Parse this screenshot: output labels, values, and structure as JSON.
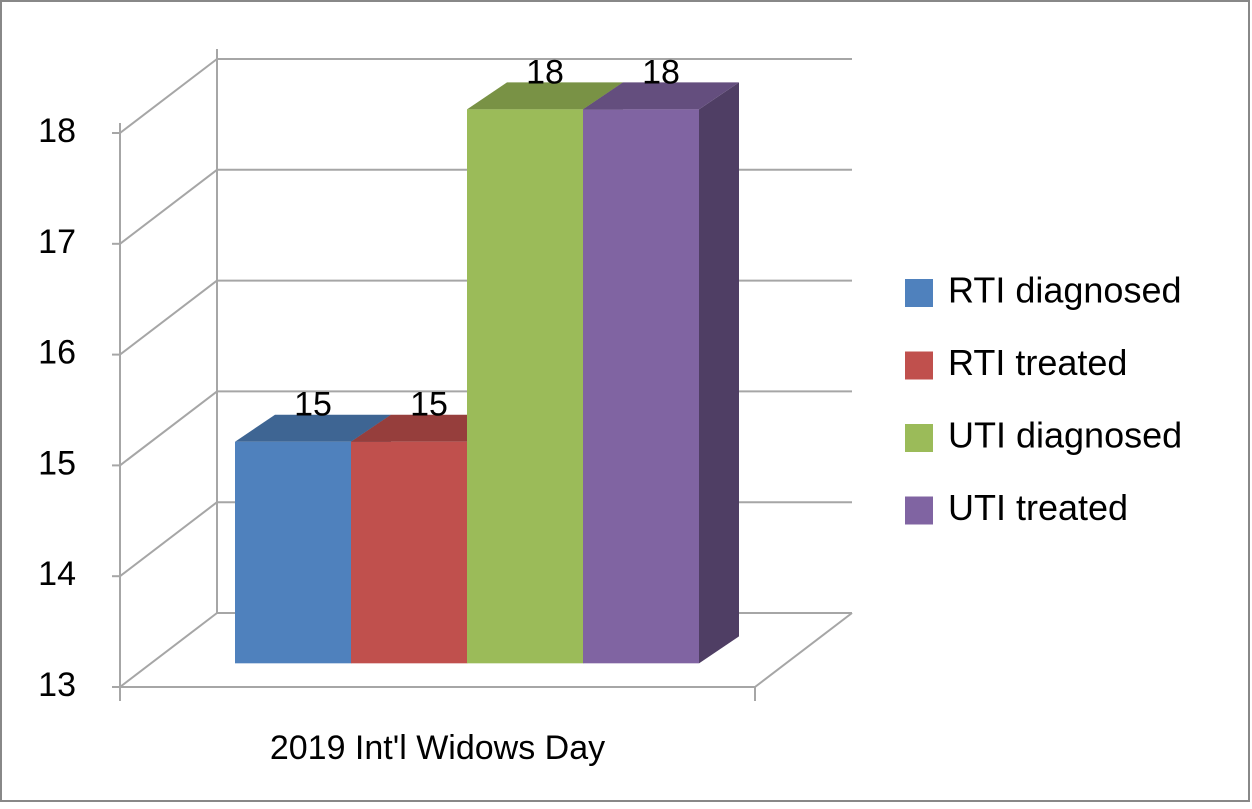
{
  "chart_data": {
    "type": "bar3d",
    "categories": [
      "2019 Int'l Widows Day"
    ],
    "series": [
      {
        "name": "RTI diagnosed",
        "color": "#4f81bd",
        "values": [
          15
        ]
      },
      {
        "name": "RTI treated",
        "color": "#c0504d",
        "values": [
          15
        ]
      },
      {
        "name": "UTI diagnosed",
        "color": "#9bbb59",
        "values": [
          18
        ]
      },
      {
        "name": "UTI treated",
        "color": "#8064a2",
        "values": [
          18
        ]
      }
    ],
    "ylim": [
      13,
      18
    ],
    "yticks": [
      13,
      14,
      15,
      16,
      17,
      18
    ],
    "grid": true,
    "legend": "right"
  }
}
